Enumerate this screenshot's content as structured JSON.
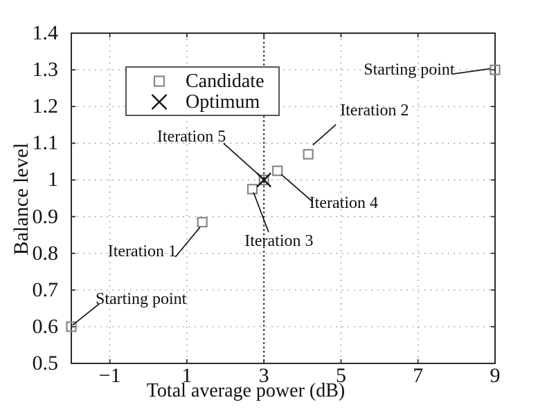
{
  "chart_data": {
    "type": "scatter",
    "title": "",
    "xlabel": "Total average power (dB)",
    "ylabel": "Balance level",
    "xlim": [
      -2,
      9
    ],
    "ylim": [
      0.5,
      1.4
    ],
    "xticks": [
      -1,
      1,
      3,
      5,
      7,
      9
    ],
    "yticks": [
      0.5,
      0.6,
      0.7,
      0.8,
      0.9,
      1,
      1.1,
      1.2,
      1.3,
      1.4
    ],
    "grid": true,
    "legend": {
      "position": "upper-left-inside",
      "entries": [
        {
          "label": "Candidate",
          "marker": "square",
          "color": "#878787"
        },
        {
          "label": "Optimum",
          "marker": "x",
          "color": "#111111"
        }
      ]
    },
    "series": [
      {
        "name": "Candidate",
        "marker": "square",
        "color": "#878787",
        "points": [
          [
            -2.0,
            0.6
          ],
          [
            1.4,
            0.885
          ],
          [
            2.7,
            0.975
          ],
          [
            3.0,
            1.0
          ],
          [
            3.35,
            1.025
          ],
          [
            4.15,
            1.07
          ],
          [
            9.0,
            1.3
          ]
        ]
      },
      {
        "name": "Optimum",
        "marker": "x",
        "color": "#111111",
        "points": [
          [
            3.0,
            1.0
          ]
        ]
      }
    ],
    "vline": {
      "x": 3.0,
      "style": "dotted",
      "color": "#111111"
    },
    "annotations": [
      {
        "text": "Starting point",
        "text_xy": [
          -0.19,
          0.675
        ],
        "line": [
          [
            -1.28,
            0.662
          ],
          [
            -1.97,
            0.604
          ]
        ]
      },
      {
        "text": "Iteration 1",
        "text_xy": [
          -0.16,
          0.805
        ],
        "line": [
          [
            0.7,
            0.79
          ],
          [
            1.34,
            0.871
          ]
        ]
      },
      {
        "text": "Iteration 5",
        "text_xy": [
          1.12,
          1.118
        ],
        "line": [
          [
            1.95,
            1.1
          ],
          [
            2.97,
            1.004
          ]
        ]
      },
      {
        "text": "Iteration 2",
        "text_xy": [
          5.87,
          1.19
        ],
        "line": [
          [
            4.87,
            1.151
          ],
          [
            4.27,
            1.095
          ]
        ]
      },
      {
        "text": "Iteration 4",
        "text_xy": [
          5.07,
          0.936
        ],
        "line": [
          [
            3.45,
            1.015
          ],
          [
            4.27,
            0.94
          ]
        ]
      },
      {
        "text": "Iteration 3",
        "text_xy": [
          3.39,
          0.834
        ],
        "line": [
          [
            2.73,
            0.966
          ],
          [
            3.12,
            0.858
          ]
        ]
      },
      {
        "text": "Starting point",
        "text_xy": [
          6.77,
          1.3
        ],
        "line": [
          [
            7.92,
            1.289
          ],
          [
            8.87,
            1.303
          ]
        ]
      }
    ],
    "colors": {
      "background": "#ffffff",
      "axis": "#2b2b2b",
      "grid_dots": "#828282",
      "candidate_marker": "#878787",
      "optimum_marker": "#111111",
      "text": "#111111"
    }
  }
}
